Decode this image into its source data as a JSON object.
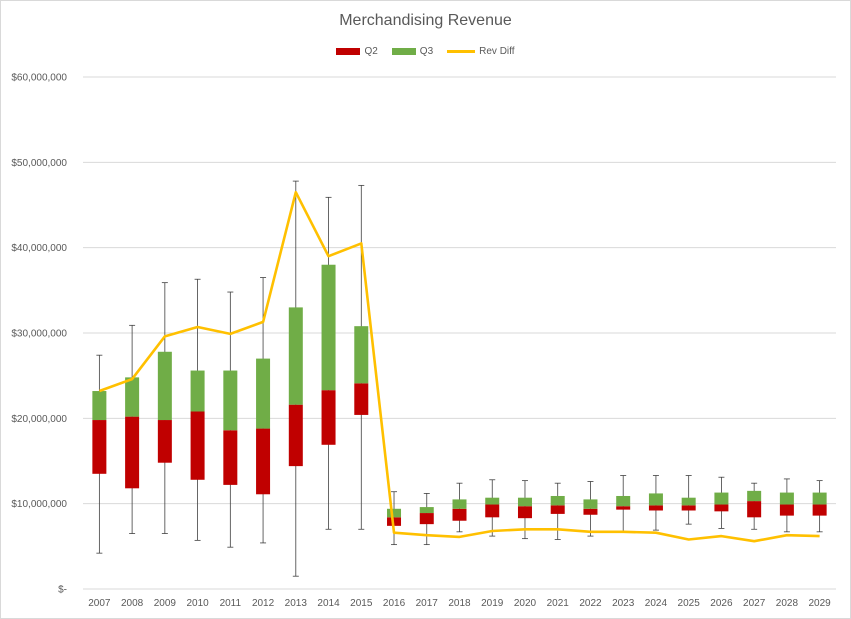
{
  "chart_data": {
    "type": "bar",
    "title": "Merchandising Revenue",
    "xlabel": "",
    "ylabel": "",
    "ylim": [
      0,
      60000000
    ],
    "y_tick_labels": [
      "$-",
      "$10,000,000",
      "$20,000,000",
      "$30,000,000",
      "$40,000,000",
      "$50,000,000",
      "$60,000,000"
    ],
    "y_tick_values": [
      0,
      10000000,
      20000000,
      30000000,
      40000000,
      50000000,
      60000000
    ],
    "grid": true,
    "legend_position": "top",
    "categories": [
      "2007",
      "2008",
      "2009",
      "2010",
      "2011",
      "2012",
      "2013",
      "2014",
      "2015",
      "2016",
      "2017",
      "2018",
      "2019",
      "2020",
      "2021",
      "2022",
      "2023",
      "2024",
      "2025",
      "2026",
      "2027",
      "2028",
      "2029"
    ],
    "series": [
      {
        "name": "Q2",
        "color": "#c00000",
        "low": [
          13500000,
          11800000,
          14800000,
          12800000,
          12200000,
          11100000,
          14400000,
          16900000,
          20400000,
          7400000,
          7600000,
          8000000,
          8400000,
          8300000,
          8800000,
          8700000,
          9300000,
          9200000,
          9200000,
          9100000,
          8400000,
          8600000,
          8600000
        ],
        "high": [
          19800000,
          20200000,
          19800000,
          20800000,
          18600000,
          18800000,
          21600000,
          23300000,
          24100000,
          8400000,
          8900000,
          9400000,
          9900000,
          9700000,
          9800000,
          9400000,
          9700000,
          9800000,
          9800000,
          9900000,
          10300000,
          9900000,
          9900000
        ]
      },
      {
        "name": "Q3",
        "color": "#70ad47",
        "low": [
          19800000,
          20200000,
          19800000,
          20800000,
          18600000,
          18800000,
          21600000,
          23300000,
          24100000,
          8400000,
          8900000,
          9400000,
          9900000,
          9700000,
          9800000,
          9400000,
          9700000,
          9800000,
          9800000,
          9900000,
          10300000,
          9900000,
          9900000
        ],
        "high": [
          23200000,
          24800000,
          27800000,
          25600000,
          25600000,
          27000000,
          33000000,
          38000000,
          30800000,
          9400000,
          9600000,
          10500000,
          10700000,
          10700000,
          10900000,
          10500000,
          10900000,
          11200000,
          10700000,
          11300000,
          11500000,
          11300000,
          11300000
        ]
      },
      {
        "name": "Rev Diff",
        "color": "#ffc000",
        "values": [
          23200000,
          24600000,
          29600000,
          30700000,
          29900000,
          31300000,
          46500000,
          39000000,
          40500000,
          6600000,
          6300000,
          6100000,
          6800000,
          7000000,
          7000000,
          6700000,
          6700000,
          6600000,
          5800000,
          6200000,
          5600000,
          6300000,
          6200000
        ]
      }
    ],
    "whiskers": {
      "low": [
        4200000,
        6500000,
        6500000,
        5700000,
        4900000,
        5400000,
        1500000,
        7000000,
        7000000,
        5200000,
        5200000,
        6700000,
        6200000,
        5900000,
        5800000,
        6200000,
        6700000,
        6900000,
        7600000,
        7100000,
        7000000,
        6700000,
        6700000
      ],
      "high": [
        27400000,
        30900000,
        35900000,
        36300000,
        34800000,
        36500000,
        47800000,
        45900000,
        47300000,
        11400000,
        11200000,
        12400000,
        12800000,
        12700000,
        12400000,
        12600000,
        13300000,
        13300000,
        13300000,
        13100000,
        12400000,
        12900000,
        12700000
      ]
    }
  }
}
